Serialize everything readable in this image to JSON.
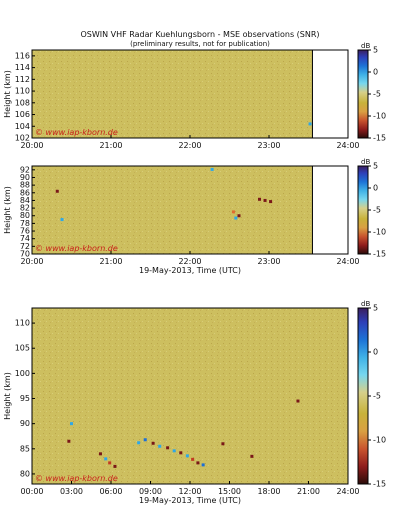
{
  "title": "OSWIN VHF Radar Kuehlungsborn - MSE observations (SNR)",
  "subtitle": "(preliminary results, not for publication)",
  "watermark": "© www.iap-kborn.de",
  "colorbar_unit": "dB",
  "colormap": [
    "#3b1f5e",
    "#2e3fb8",
    "#1d73d6",
    "#3fb1e6",
    "#77d7ee",
    "#d6d08a",
    "#c8b23a",
    "#d9a043",
    "#c9542e",
    "#8f1d1c",
    "#2b0d0b"
  ],
  "background_color": "#ccbf5e",
  "chart_data": [
    {
      "type": "heatmap",
      "panel": "top",
      "xlabel": "",
      "ylabel": "Height (km)",
      "x_ticks": [
        "20:00",
        "21:00",
        "22:00",
        "23:00",
        "24:00"
      ],
      "x_range_hours": [
        20,
        24
      ],
      "data_end_hour": 23.55,
      "y_ticks": [
        "102",
        "104",
        "106",
        "108",
        "110",
        "112",
        "114",
        "116"
      ],
      "y_range": [
        102,
        117
      ],
      "colorbar_ticks": [
        "5",
        "0",
        "-5",
        "-10",
        "-15"
      ],
      "clim": [
        -15,
        5
      ],
      "echoes": [
        {
          "x": 23.52,
          "y": 104.4,
          "snr": 3
        }
      ]
    },
    {
      "type": "heatmap",
      "panel": "middle",
      "xlabel": "19-May-2013, Time (UTC)",
      "ylabel": "Height (km)",
      "x_ticks": [
        "20:00",
        "21:00",
        "22:00",
        "23:00",
        "24:00"
      ],
      "x_range_hours": [
        20,
        24
      ],
      "data_end_hour": 23.55,
      "y_ticks": [
        "70",
        "72",
        "74",
        "76",
        "78",
        "80",
        "82",
        "84",
        "86",
        "88",
        "90",
        "92"
      ],
      "y_range": [
        70,
        93
      ],
      "colorbar_ticks": [
        "5",
        "0",
        "-5",
        "-10",
        "-15"
      ],
      "clim": [
        -15,
        5
      ],
      "echoes": [
        {
          "x": 20.32,
          "y": 86.4,
          "snr": -11
        },
        {
          "x": 20.38,
          "y": 79.0,
          "snr": 3
        },
        {
          "x": 22.28,
          "y": 92.1,
          "snr": 4
        },
        {
          "x": 22.55,
          "y": 81.0,
          "snr": -2
        },
        {
          "x": 22.58,
          "y": 79.4,
          "snr": 3
        },
        {
          "x": 22.62,
          "y": 80.0,
          "snr": -12
        },
        {
          "x": 22.88,
          "y": 84.3,
          "snr": -11
        },
        {
          "x": 22.95,
          "y": 84.0,
          "snr": -12
        },
        {
          "x": 23.02,
          "y": 83.7,
          "snr": -11
        }
      ]
    },
    {
      "type": "heatmap",
      "panel": "bottom",
      "xlabel": "19-May-2013, Time (UTC)",
      "ylabel": "Height (km)",
      "x_ticks": [
        "00:00",
        "03:00",
        "06:00",
        "09:00",
        "12:00",
        "15:00",
        "18:00",
        "21:00",
        "24:00"
      ],
      "x_range_hours": [
        0,
        24
      ],
      "y_ticks": [
        "80",
        "85",
        "90",
        "95",
        "100",
        "105",
        "110"
      ],
      "y_range": [
        78,
        113
      ],
      "colorbar_ticks": [
        "5",
        "0",
        "-5",
        "-10",
        "-15"
      ],
      "clim": [
        -15,
        5
      ],
      "echoes": [
        {
          "x": 3.0,
          "y": 90.0,
          "snr": 3
        },
        {
          "x": 2.8,
          "y": 86.5,
          "snr": -11
        },
        {
          "x": 5.2,
          "y": 84.0,
          "snr": -12
        },
        {
          "x": 5.6,
          "y": 83.0,
          "snr": 2
        },
        {
          "x": 5.9,
          "y": 82.2,
          "snr": -10
        },
        {
          "x": 6.3,
          "y": 81.5,
          "snr": -13
        },
        {
          "x": 8.1,
          "y": 86.2,
          "snr": 3
        },
        {
          "x": 8.6,
          "y": 86.8,
          "snr": 1
        },
        {
          "x": 9.2,
          "y": 86.1,
          "snr": -12
        },
        {
          "x": 9.7,
          "y": 85.5,
          "snr": 4
        },
        {
          "x": 10.3,
          "y": 85.2,
          "snr": -11
        },
        {
          "x": 10.8,
          "y": 84.6,
          "snr": 2
        },
        {
          "x": 11.3,
          "y": 84.2,
          "snr": -12
        },
        {
          "x": 11.8,
          "y": 83.6,
          "snr": 3
        },
        {
          "x": 12.2,
          "y": 82.9,
          "snr": -10
        },
        {
          "x": 12.6,
          "y": 82.2,
          "snr": -13
        },
        {
          "x": 13.0,
          "y": 81.8,
          "snr": 1
        },
        {
          "x": 14.5,
          "y": 86.0,
          "snr": -11
        },
        {
          "x": 16.7,
          "y": 83.5,
          "snr": -12
        },
        {
          "x": 20.2,
          "y": 94.5,
          "snr": -11
        }
      ]
    }
  ]
}
